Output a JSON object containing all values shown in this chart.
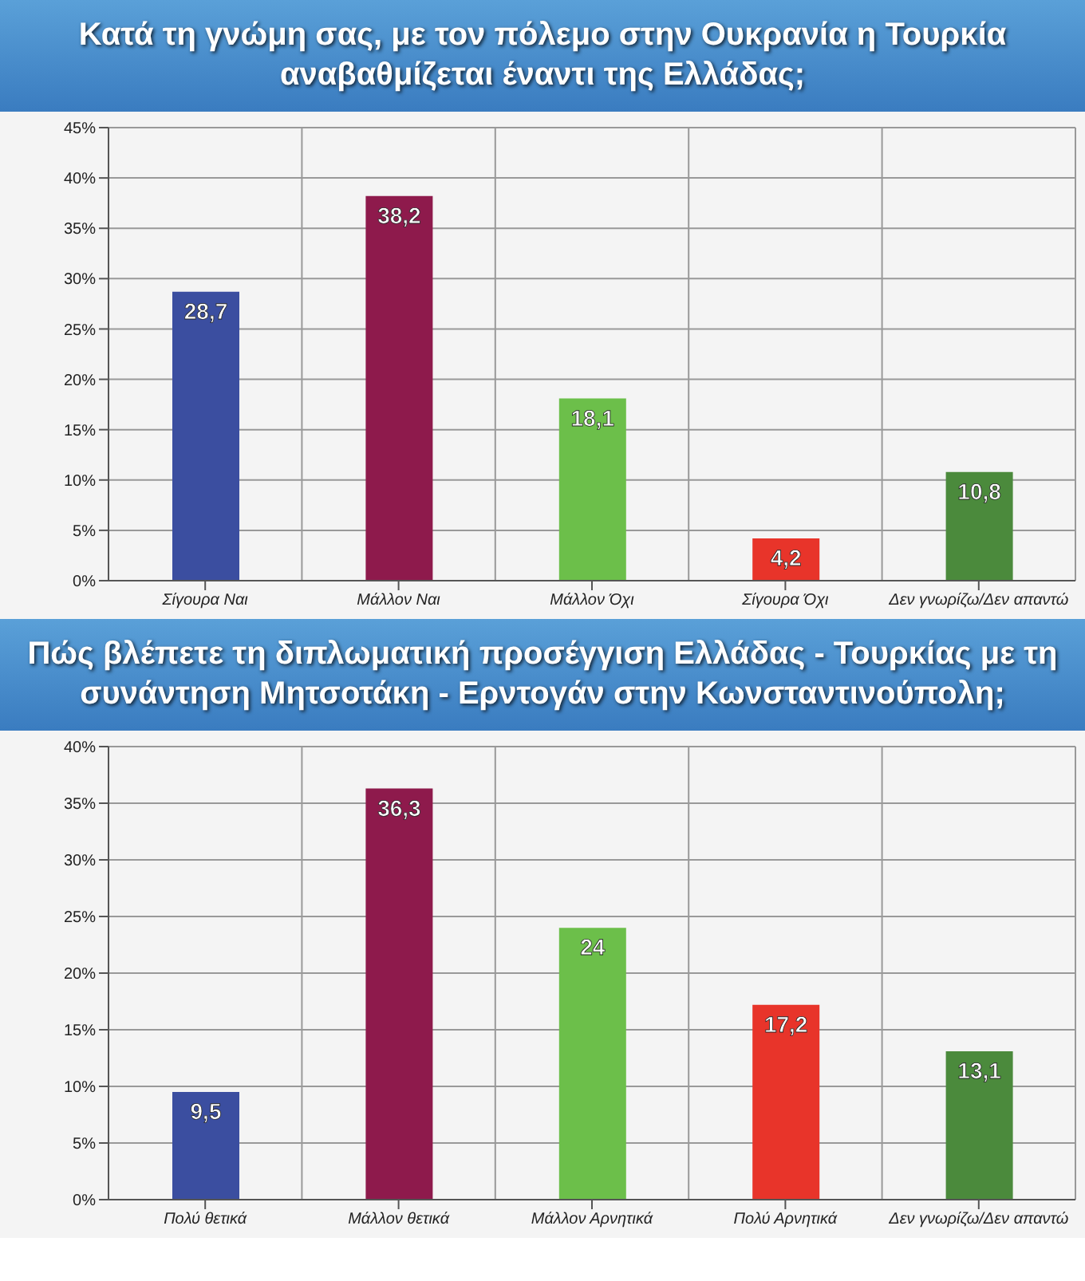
{
  "chart_data": [
    {
      "type": "bar",
      "title": "Κατά τη γνώμη σας, με τον πόλεμο στην Ουκρανία η Τουρκία αναβαθμίζεται έναντι της Ελλάδας;",
      "categories": [
        "Σίγουρα Ναι",
        "Μάλλον Ναι",
        "Μάλλον Όχι",
        "Σίγουρα Όχι",
        "Δεν γνωρίζω/Δεν απαντώ"
      ],
      "values": [
        28.7,
        38.2,
        18.1,
        4.2,
        10.8
      ],
      "value_labels": [
        "28,7",
        "38,2",
        "18,1",
        "4,2",
        "10,8"
      ],
      "colors": [
        "#3b4ea0",
        "#8e1a4c",
        "#6cbf4a",
        "#e8342a",
        "#4b8a3c"
      ],
      "ylim": [
        0,
        45
      ],
      "yticks": [
        {
          "value": 0,
          "label": "0%"
        },
        {
          "value": 5,
          "label": "5%"
        },
        {
          "value": 10,
          "label": "10%"
        },
        {
          "value": 15,
          "label": "15%"
        },
        {
          "value": 20,
          "label": "20%"
        },
        {
          "value": 25,
          "label": "25%"
        },
        {
          "value": 30,
          "label": "30%"
        },
        {
          "value": 35,
          "label": "35%"
        },
        {
          "value": 40,
          "label": "40%"
        },
        {
          "value": 45,
          "label": "45%"
        }
      ],
      "grid": true
    },
    {
      "type": "bar",
      "title": "Πώς βλέπετε τη διπλωματική προσέγγιση Ελλάδας - Τουρκίας με τη συνάντηση Μητσοτάκη - Ερντογάν στην Κωνσταντινούπολη;",
      "categories": [
        "Πολύ θετικά",
        "Μάλλον θετικά",
        "Μάλλον Αρνητικά",
        "Πολύ Αρνητικά",
        "Δεν γνωρίζω/Δεν απαντώ"
      ],
      "values": [
        9.5,
        36.3,
        24,
        17.2,
        13.1
      ],
      "value_labels": [
        "9,5",
        "36,3",
        "24",
        "17,2",
        "13,1"
      ],
      "colors": [
        "#3b4ea0",
        "#8e1a4c",
        "#6cbf4a",
        "#e8342a",
        "#4b8a3c"
      ],
      "ylim": [
        0,
        40
      ],
      "yticks": [
        {
          "value": 0,
          "label": "0%"
        },
        {
          "value": 5,
          "label": "5%"
        },
        {
          "value": 10,
          "label": "10%"
        },
        {
          "value": 15,
          "label": "15%"
        },
        {
          "value": 20,
          "label": "20%"
        },
        {
          "value": 25,
          "label": "25%"
        },
        {
          "value": 30,
          "label": "30%"
        },
        {
          "value": 35,
          "label": "35%"
        },
        {
          "value": 40,
          "label": "40%"
        }
      ],
      "grid": true
    }
  ]
}
